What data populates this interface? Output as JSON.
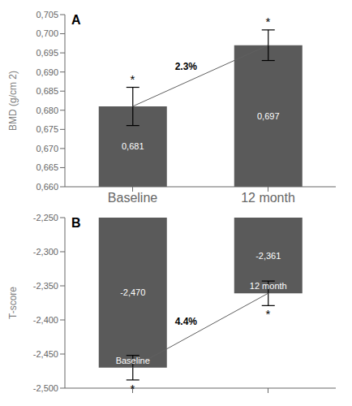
{
  "chart_data": [
    {
      "type": "bar",
      "title": "A",
      "categories": [
        "Baseline",
        "12 month"
      ],
      "y_label": "BMD (g/cm 2)",
      "ylim": [
        0.66,
        0.705
      ],
      "yticks": [
        {
          "value": 0.66,
          "label": "0,660"
        },
        {
          "value": 0.665,
          "label": "0,665"
        },
        {
          "value": 0.67,
          "label": "0,670"
        },
        {
          "value": 0.675,
          "label": "0,675"
        },
        {
          "value": 0.68,
          "label": "0,680"
        },
        {
          "value": 0.685,
          "label": "0,685"
        },
        {
          "value": 0.69,
          "label": "0,690"
        },
        {
          "value": 0.695,
          "label": "0,695"
        },
        {
          "value": 0.7,
          "label": "0,700"
        },
        {
          "value": 0.705,
          "label": "0,705"
        }
      ],
      "data_labels": true,
      "series": [
        {
          "type": "bar",
          "color": "#5a5a5a",
          "values": [
            0.681,
            0.697
          ],
          "errors": [
            0.005,
            0.004
          ],
          "value_labels": [
            "0,681",
            "0,697"
          ],
          "significance": [
            "*",
            "*"
          ]
        },
        {
          "type": "line",
          "color": "#606060",
          "values": [
            0.681,
            0.697
          ],
          "annotation": "2.3%"
        }
      ]
    },
    {
      "type": "bar",
      "title": "B",
      "categories": [
        "Baseline",
        "12 month"
      ],
      "y_label": "T-score",
      "ylim": [
        -2.5,
        -2.25
      ],
      "yticks": [
        {
          "value": -2.5,
          "label": "-2,500"
        },
        {
          "value": -2.45,
          "label": "-2,450"
        },
        {
          "value": -2.4,
          "label": "-2,400"
        },
        {
          "value": -2.35,
          "label": "-2,350"
        },
        {
          "value": -2.3,
          "label": "-2,300"
        },
        {
          "value": -2.25,
          "label": "-2,250"
        }
      ],
      "data_labels": true,
      "tick_labels": "y",
      "series": [
        {
          "type": "bar",
          "color": "#5a5a5a",
          "values": [
            -2.47,
            -2.361
          ],
          "errors": [
            0.018,
            0.018
          ],
          "value_labels": [
            "-2,470",
            "-2,361"
          ],
          "significance": [
            "*",
            "*"
          ]
        },
        {
          "type": "line",
          "color": "#606060",
          "values": [
            -2.47,
            -2.361
          ],
          "annotation": "4.4%"
        }
      ]
    }
  ]
}
